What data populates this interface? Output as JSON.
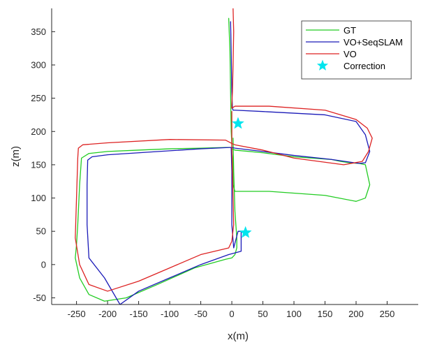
{
  "chart_data": {
    "type": "line",
    "xlabel": "x(m)",
    "ylabel": "z(m)",
    "xlim": [
      -290,
      300
    ],
    "ylim": [
      -60,
      385
    ],
    "xticks": [
      -250,
      -200,
      -150,
      -100,
      -50,
      0,
      50,
      100,
      150,
      200,
      250
    ],
    "yticks": [
      -50,
      0,
      50,
      100,
      150,
      200,
      250,
      300,
      350
    ],
    "grid": false,
    "legend_position": "top-right",
    "series": [
      {
        "name": "GT",
        "color": "#22cc22",
        "x": [
          -5,
          -3,
          -2,
          -1,
          0,
          0,
          1,
          2,
          5,
          60,
          150,
          200,
          215,
          222,
          215,
          205,
          190,
          175,
          160,
          100,
          50,
          5,
          0,
          0,
          -2,
          -10,
          -50,
          -100,
          -150,
          -200,
          -230,
          -242,
          -245,
          -248,
          -250,
          -252,
          -245,
          -230,
          -205,
          -170,
          -120,
          -60,
          -10,
          0,
          5,
          8,
          8,
          5,
          3,
          2
        ],
        "y": [
          370,
          320,
          260,
          200,
          180,
          170,
          160,
          120,
          110,
          110,
          104,
          95,
          100,
          120,
          150,
          152,
          153,
          155,
          158,
          162,
          168,
          172,
          174,
          175,
          176,
          176,
          175,
          174,
          172,
          170,
          167,
          160,
          120,
          60,
          30,
          10,
          -20,
          -45,
          -55,
          -50,
          -30,
          -5,
          8,
          10,
          15,
          25,
          40,
          80,
          140,
          190
        ]
      },
      {
        "name": "VO+SeqSLAM",
        "color": "#1a1ab8",
        "x": [
          -2,
          -1,
          0,
          1,
          2,
          5,
          50,
          150,
          200,
          215,
          222,
          215,
          205,
          190,
          160,
          100,
          50,
          5,
          0,
          -3,
          -50,
          -100,
          -150,
          -200,
          -225,
          -232,
          -233,
          -233,
          -230,
          -205,
          -180,
          -150,
          -100,
          -50,
          -5,
          15,
          15,
          10,
          3,
          0,
          0,
          0,
          -1
        ],
        "y": [
          365,
          320,
          260,
          235,
          232,
          232,
          230,
          225,
          215,
          195,
          170,
          153,
          152,
          154,
          158,
          164,
          170,
          175,
          176,
          176,
          174,
          171,
          168,
          165,
          162,
          157,
          120,
          60,
          10,
          -20,
          -60,
          -40,
          -20,
          0,
          15,
          20,
          50,
          50,
          25,
          60,
          100,
          140,
          175
        ]
      },
      {
        "name": "VO",
        "color": "#dd2222",
        "x": [
          2,
          3,
          2,
          1,
          0,
          0,
          5,
          60,
          150,
          200,
          218,
          226,
          220,
          210,
          180,
          100,
          50,
          5,
          0,
          -10,
          -100,
          -200,
          -240,
          -247,
          -248,
          -250,
          -252,
          -245,
          -230,
          -200,
          -150,
          -100,
          -50,
          -5,
          0,
          3,
          2,
          1,
          0,
          0
        ],
        "y": [
          385,
          350,
          300,
          260,
          240,
          235,
          238,
          238,
          232,
          218,
          205,
          190,
          170,
          155,
          150,
          160,
          172,
          180,
          182,
          187,
          188,
          183,
          180,
          175,
          160,
          100,
          40,
          0,
          -30,
          -40,
          -25,
          -5,
          15,
          25,
          35,
          60,
          100,
          140,
          180,
          230
        ]
      }
    ],
    "markers": [
      {
        "name": "Correction",
        "color": "#00e5ee",
        "shape": "star",
        "points": [
          {
            "x": 10,
            "y": 212
          },
          {
            "x": 22,
            "y": 48
          }
        ]
      }
    ]
  }
}
